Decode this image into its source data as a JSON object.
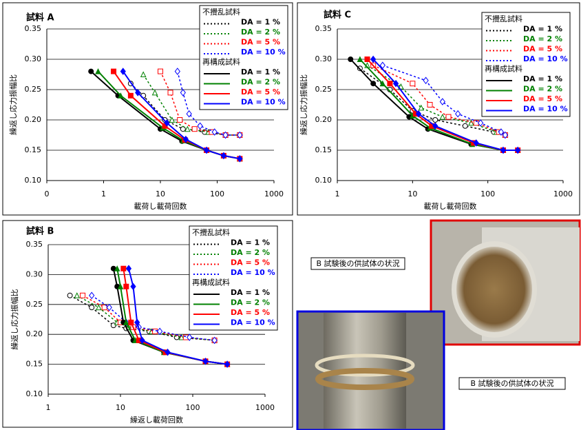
{
  "chart_data": [
    {
      "type": "line",
      "title": "試料 A",
      "x_label": "載荷し載荷回数",
      "y_label": "繰返し応力振幅比",
      "log_x": true,
      "xlim": [
        0.1,
        1000
      ],
      "xticks": [
        {
          "value": 0.1,
          "label": "0"
        },
        1,
        10,
        100,
        1000
      ],
      "ylim": [
        0.1,
        0.35
      ],
      "yticks": [
        {
          "value": 0.1,
          "label": "0.10"
        },
        0.15,
        {
          "value": 0.2,
          "label": "0.20"
        },
        0.25,
        {
          "value": 0.3,
          "label": "0.30"
        },
        0.35
      ],
      "grid": true,
      "legend_groups": [
        "不攪乱試料",
        "再構成試料"
      ],
      "series": [
        {
          "name": "DA = 1 %",
          "color": "#000000",
          "group": 0,
          "dash": true,
          "x": [
            3,
            5,
            12,
            25,
            60,
            140,
            250
          ],
          "values": [
            0.26,
            0.24,
            0.2,
            0.185,
            0.18,
            0.175,
            0.175
          ]
        },
        {
          "name": "DA = 2 %",
          "color": "#008000",
          "group": 0,
          "dash": true,
          "x": [
            5,
            8,
            16,
            30,
            70,
            140,
            250
          ],
          "values": [
            0.275,
            0.245,
            0.2,
            0.185,
            0.18,
            0.175,
            0.175
          ]
        },
        {
          "name": "DA = 5 %",
          "color": "#ff0000",
          "group": 0,
          "dash": true,
          "x": [
            10,
            15,
            22,
            40,
            80,
            140,
            250
          ],
          "values": [
            0.28,
            0.245,
            0.2,
            0.185,
            0.18,
            0.175,
            0.175
          ]
        },
        {
          "name": "DA = 10 %",
          "color": "#0000ff",
          "group": 0,
          "dash": true,
          "x": [
            20,
            25,
            32,
            50,
            90,
            140,
            250
          ],
          "values": [
            0.28,
            0.245,
            0.21,
            0.19,
            0.18,
            0.175,
            0.175
          ]
        },
        {
          "name": "DA = 1 %",
          "color": "#000000",
          "group": 1,
          "dash": false,
          "x": [
            0.6,
            1.8,
            10,
            24,
            65,
            130,
            250
          ],
          "values": [
            0.28,
            0.24,
            0.185,
            0.165,
            0.15,
            0.141,
            0.136
          ]
        },
        {
          "name": "DA = 2 %",
          "color": "#008000",
          "group": 1,
          "dash": false,
          "x": [
            0.8,
            2,
            11,
            25,
            65,
            130,
            250
          ],
          "values": [
            0.28,
            0.24,
            0.187,
            0.166,
            0.15,
            0.141,
            0.136
          ]
        },
        {
          "name": "DA = 5 %",
          "color": "#ff0000",
          "group": 1,
          "dash": false,
          "x": [
            1.5,
            3,
            12,
            27,
            65,
            130,
            250
          ],
          "values": [
            0.28,
            0.24,
            0.19,
            0.167,
            0.15,
            0.141,
            0.136
          ]
        },
        {
          "name": "DA = 10 %",
          "color": "#0000ff",
          "group": 1,
          "dash": false,
          "x": [
            2.2,
            4,
            13,
            28,
            65,
            130,
            250
          ],
          "values": [
            0.28,
            0.245,
            0.195,
            0.168,
            0.15,
            0.141,
            0.136
          ]
        }
      ]
    },
    {
      "type": "line",
      "title": "試料 B",
      "x_label": "繰返し載荷回数",
      "y_label": "繰返し応力振幅比",
      "log_x": true,
      "xlim": [
        1,
        1000
      ],
      "xticks": [
        1,
        10,
        100,
        1000
      ],
      "ylim": [
        0.1,
        0.35
      ],
      "yticks": [
        {
          "value": 0.1,
          "label": "0.10"
        },
        0.15,
        {
          "value": 0.2,
          "label": "0.20"
        },
        0.25,
        {
          "value": 0.3,
          "label": "0.30"
        },
        0.35
      ],
      "grid": true,
      "legend_groups": [
        "不攪乱試料",
        "再構成試料"
      ],
      "series": [
        {
          "name": "DA = 1 %",
          "color": "#000000",
          "group": 0,
          "dash": true,
          "x": [
            2,
            4,
            8,
            12,
            25,
            60,
            200
          ],
          "values": [
            0.265,
            0.245,
            0.215,
            0.21,
            0.205,
            0.195,
            0.19
          ]
        },
        {
          "name": "DA = 2 %",
          "color": "#008000",
          "group": 0,
          "dash": true,
          "x": [
            2.5,
            5,
            9,
            13,
            27,
            70,
            200
          ],
          "values": [
            0.265,
            0.245,
            0.22,
            0.212,
            0.205,
            0.195,
            0.19
          ]
        },
        {
          "name": "DA = 5 %",
          "color": "#ff0000",
          "group": 0,
          "dash": true,
          "x": [
            3,
            6,
            10,
            15,
            30,
            80,
            200
          ],
          "values": [
            0.265,
            0.245,
            0.22,
            0.212,
            0.205,
            0.195,
            0.19
          ]
        },
        {
          "name": "DA = 10 %",
          "color": "#0000ff",
          "group": 0,
          "dash": true,
          "x": [
            4,
            7,
            12,
            18,
            35,
            90,
            200
          ],
          "values": [
            0.265,
            0.245,
            0.22,
            0.212,
            0.205,
            0.195,
            0.19
          ]
        },
        {
          "name": "DA = 1 %",
          "color": "#000000",
          "group": 1,
          "dash": false,
          "x": [
            8,
            9,
            11,
            15,
            40,
            150,
            300
          ],
          "values": [
            0.31,
            0.28,
            0.22,
            0.19,
            0.17,
            0.155,
            0.15
          ]
        },
        {
          "name": "DA = 2 %",
          "color": "#008000",
          "group": 1,
          "dash": false,
          "x": [
            9,
            10,
            12,
            16,
            40,
            150,
            300
          ],
          "values": [
            0.31,
            0.28,
            0.22,
            0.19,
            0.17,
            0.155,
            0.15
          ]
        },
        {
          "name": "DA = 5 %",
          "color": "#ff0000",
          "group": 1,
          "dash": false,
          "x": [
            11,
            12,
            14,
            18,
            42,
            150,
            300
          ],
          "values": [
            0.31,
            0.28,
            0.22,
            0.19,
            0.17,
            0.155,
            0.15
          ]
        },
        {
          "name": "DA = 10 %",
          "color": "#0000ff",
          "group": 1,
          "dash": false,
          "x": [
            13,
            15,
            17,
            20,
            45,
            150,
            300
          ],
          "values": [
            0.31,
            0.28,
            0.22,
            0.19,
            0.17,
            0.155,
            0.15
          ]
        }
      ]
    },
    {
      "type": "line",
      "title": "試料 C",
      "x_label": "載荷し載荷回数",
      "y_label": "繰返し応力振幅比",
      "log_x": true,
      "xlim": [
        1,
        1000
      ],
      "xticks": [
        1,
        10,
        100,
        1000
      ],
      "ylim": [
        0.1,
        0.35
      ],
      "yticks": [
        {
          "value": 0.1,
          "label": "0.10"
        },
        0.15,
        {
          "value": 0.2,
          "label": "0.20"
        },
        0.25,
        {
          "value": 0.3,
          "label": "0.30"
        },
        0.35
      ],
      "grid": true,
      "legend_groups": [
        "不攪乱試料",
        "再構成試料"
      ],
      "series": [
        {
          "name": "DA = 1 %",
          "color": "#000000",
          "group": 0,
          "dash": true,
          "x": [
            2,
            5,
            10,
            20,
            50,
            120,
            170
          ],
          "values": [
            0.285,
            0.25,
            0.215,
            0.2,
            0.19,
            0.18,
            0.175
          ]
        },
        {
          "name": "DA = 2 %",
          "color": "#008000",
          "group": 0,
          "dash": true,
          "x": [
            2.5,
            7,
            13,
            25,
            60,
            130,
            170
          ],
          "values": [
            0.29,
            0.255,
            0.22,
            0.205,
            0.195,
            0.18,
            0.175
          ]
        },
        {
          "name": "DA = 5 %",
          "color": "#ff0000",
          "group": 0,
          "dash": true,
          "x": [
            3,
            10,
            17,
            30,
            70,
            140,
            170
          ],
          "values": [
            0.29,
            0.26,
            0.225,
            0.205,
            0.195,
            0.18,
            0.175
          ]
        },
        {
          "name": "DA = 10 %",
          "color": "#0000ff",
          "group": 0,
          "dash": true,
          "x": [
            4,
            15,
            25,
            40,
            80,
            150,
            170
          ],
          "values": [
            0.29,
            0.265,
            0.23,
            0.21,
            0.195,
            0.18,
            0.175
          ]
        },
        {
          "name": "DA = 1 %",
          "color": "#000000",
          "group": 1,
          "dash": false,
          "x": [
            1.5,
            3,
            9,
            16,
            60,
            160,
            250
          ],
          "values": [
            0.3,
            0.26,
            0.205,
            0.185,
            0.16,
            0.15,
            0.15
          ]
        },
        {
          "name": "DA = 2 %",
          "color": "#008000",
          "group": 1,
          "dash": false,
          "x": [
            2,
            4,
            10,
            17,
            62,
            160,
            250
          ],
          "values": [
            0.3,
            0.26,
            0.207,
            0.187,
            0.16,
            0.15,
            0.15
          ]
        },
        {
          "name": "DA = 5 %",
          "color": "#ff0000",
          "group": 1,
          "dash": false,
          "x": [
            2.5,
            5,
            11,
            18,
            65,
            160,
            250
          ],
          "values": [
            0.3,
            0.26,
            0.21,
            0.19,
            0.162,
            0.15,
            0.15
          ]
        },
        {
          "name": "DA = 10 %",
          "color": "#0000ff",
          "group": 1,
          "dash": false,
          "x": [
            3,
            6,
            12,
            20,
            70,
            160,
            250
          ],
          "values": [
            0.3,
            0.26,
            0.21,
            0.19,
            0.162,
            0.15,
            0.15
          ]
        }
      ]
    }
  ],
  "captions": [
    "B 試験後の供試体の状況",
    "B 試験後の供試体の状況"
  ]
}
